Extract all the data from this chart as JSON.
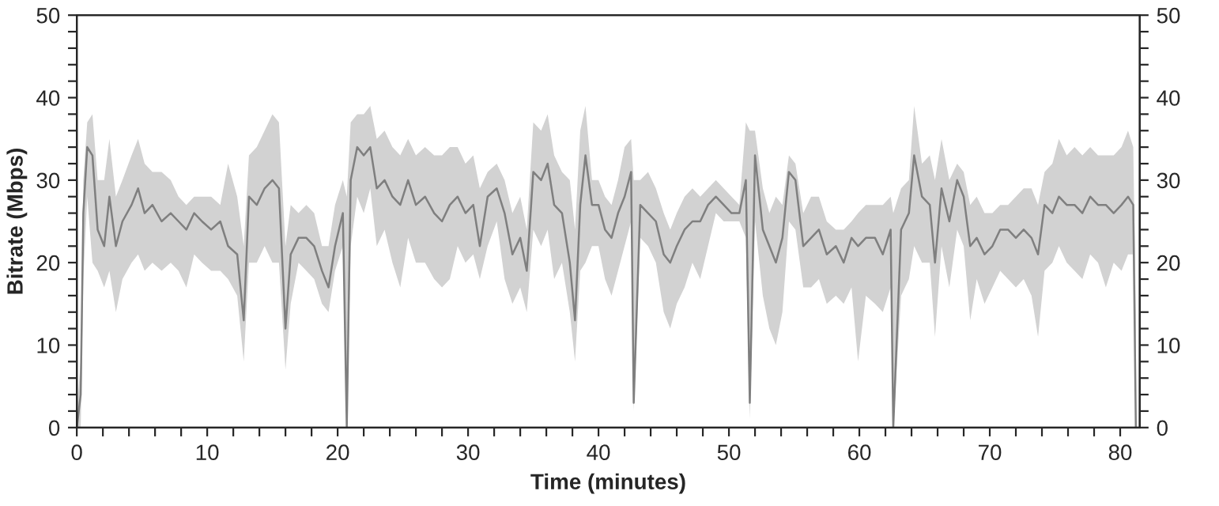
{
  "chart_data": {
    "type": "line",
    "xlabel": "Time (minutes)",
    "ylabel": "Bitrate (Mbps)",
    "x": [
      0,
      0.3,
      0.5,
      0.8,
      1.2,
      1.6,
      2.1,
      2.5,
      3.0,
      3.5,
      4.2,
      4.7,
      5.2,
      5.8,
      6.5,
      7.2,
      7.8,
      8.4,
      9.0,
      9.6,
      10.3,
      11.0,
      11.6,
      12.3,
      12.8,
      13.2,
      13.8,
      14.4,
      15.0,
      15.5,
      16.0,
      16.4,
      17.0,
      17.6,
      18.2,
      18.8,
      19.3,
      19.8,
      20.4,
      20.7,
      21.0,
      21.5,
      22.0,
      22.5,
      23.0,
      23.6,
      24.2,
      24.8,
      25.4,
      26.0,
      26.7,
      27.4,
      28.0,
      28.6,
      29.2,
      29.8,
      30.4,
      30.9,
      31.5,
      32.2,
      32.8,
      33.4,
      34.0,
      34.5,
      35.0,
      35.6,
      36.1,
      36.6,
      37.2,
      37.8,
      38.2,
      38.6,
      39.0,
      39.5,
      40.0,
      40.5,
      41.0,
      41.5,
      42.0,
      42.5,
      42.7,
      43.2,
      43.8,
      44.4,
      45.0,
      45.5,
      46.0,
      46.6,
      47.2,
      47.8,
      48.4,
      49.0,
      49.6,
      50.2,
      50.8,
      51.3,
      51.6,
      52.0,
      52.6,
      53.1,
      53.6,
      54.1,
      54.6,
      55.1,
      55.7,
      56.3,
      56.9,
      57.5,
      58.2,
      58.8,
      59.4,
      59.9,
      60.5,
      61.2,
      61.8,
      62.4,
      62.6,
      63.2,
      63.8,
      64.2,
      64.8,
      65.4,
      65.8,
      66.3,
      66.9,
      67.5,
      68.0,
      68.5,
      69.0,
      69.6,
      70.2,
      70.8,
      71.4,
      72.0,
      72.6,
      73.2,
      73.7,
      74.2,
      74.8,
      75.3,
      75.9,
      76.5,
      77.1,
      77.7,
      78.3,
      78.9,
      79.5,
      80.1,
      80.6,
      81.0,
      81.2
    ],
    "series": [
      {
        "color": "#7f7f7f",
        "values": [
          0,
          4,
          26,
          34,
          33,
          24,
          22,
          28,
          22,
          25,
          27,
          29,
          26,
          27,
          25,
          26,
          25,
          24,
          26,
          25,
          24,
          25,
          22,
          21,
          13,
          28,
          27,
          29,
          30,
          29,
          12,
          21,
          23,
          23,
          22,
          19,
          17,
          22,
          26,
          0,
          30,
          34,
          33,
          34,
          29,
          30,
          28,
          27,
          30,
          27,
          28,
          26,
          25,
          27,
          28,
          26,
          27,
          22,
          28,
          29,
          26,
          21,
          23,
          19,
          31,
          30,
          32,
          27,
          26,
          20,
          13,
          27,
          33,
          27,
          27,
          24,
          23,
          26,
          28,
          31,
          3,
          27,
          26,
          25,
          21,
          20,
          22,
          24,
          25,
          25,
          27,
          28,
          27,
          26,
          26,
          30,
          3,
          33,
          24,
          22,
          20,
          23,
          31,
          30,
          22,
          23,
          24,
          21,
          22,
          20,
          23,
          22,
          23,
          23,
          21,
          24,
          0,
          24,
          26,
          33,
          28,
          27,
          20,
          29,
          25,
          30,
          28,
          22,
          23,
          21,
          22,
          24,
          24,
          23,
          24,
          23,
          21,
          27,
          26,
          28,
          27,
          27,
          26,
          28,
          27,
          27,
          26,
          27,
          28,
          27,
          0
        ],
        "lower": [
          0,
          0,
          18,
          28,
          20,
          19,
          17,
          19,
          14,
          18,
          20,
          21,
          19,
          20,
          19,
          20,
          19,
          17,
          21,
          20,
          19,
          19,
          18,
          16,
          8,
          20,
          20,
          22,
          20,
          20,
          7,
          15,
          20,
          19,
          18,
          15,
          14,
          19,
          22,
          0,
          22,
          28,
          26,
          29,
          22,
          24,
          20,
          17,
          23,
          20,
          20,
          18,
          17,
          18,
          22,
          20,
          21,
          18,
          22,
          25,
          18,
          15,
          17,
          14,
          24,
          22,
          24,
          18,
          20,
          14,
          8,
          19,
          20,
          22,
          22,
          18,
          16,
          19,
          22,
          25,
          2,
          23,
          22,
          20,
          14,
          12,
          15,
          17,
          20,
          18,
          22,
          26,
          25,
          25,
          25,
          23,
          1,
          25,
          16,
          12,
          10,
          14,
          25,
          24,
          17,
          17,
          18,
          15,
          16,
          15,
          17,
          8,
          16,
          15,
          14,
          17,
          0,
          16,
          18,
          22,
          20,
          20,
          11,
          22,
          17,
          24,
          22,
          13,
          18,
          15,
          17,
          19,
          18,
          17,
          18,
          16,
          11,
          19,
          20,
          22,
          20,
          19,
          18,
          21,
          20,
          17,
          20,
          19,
          21,
          21,
          0
        ],
        "upper": [
          2,
          8,
          30,
          37,
          38,
          30,
          30,
          35,
          28,
          30,
          33,
          35,
          32,
          31,
          31,
          30,
          28,
          27,
          28,
          28,
          28,
          27,
          32,
          28,
          22,
          33,
          34,
          36,
          38,
          37,
          22,
          27,
          26,
          27,
          26,
          22,
          22,
          27,
          30,
          28,
          37,
          38,
          38,
          39,
          35,
          36,
          34,
          33,
          35,
          33,
          34,
          33,
          33,
          34,
          34,
          32,
          33,
          29,
          31,
          32,
          30,
          26,
          28,
          24,
          37,
          36,
          38,
          33,
          31,
          30,
          24,
          36,
          39,
          30,
          30,
          28,
          27,
          30,
          34,
          35,
          30,
          30,
          31,
          29,
          26,
          24,
          26,
          28,
          29,
          28,
          29,
          30,
          29,
          28,
          27,
          37,
          36,
          36,
          29,
          26,
          28,
          27,
          33,
          32,
          26,
          28,
          28,
          25,
          24,
          24,
          25,
          26,
          27,
          27,
          27,
          28,
          26,
          29,
          30,
          39,
          32,
          33,
          30,
          35,
          30,
          32,
          31,
          27,
          28,
          26,
          26,
          27,
          27,
          28,
          29,
          29,
          27,
          31,
          32,
          35,
          33,
          34,
          33,
          34,
          33,
          33,
          33,
          34,
          36,
          34,
          14
        ]
      }
    ],
    "xlim": [
      0,
      81.5
    ],
    "xticks": [
      0,
      {
        "value": 2,
        "label": null
      },
      {
        "value": 4,
        "label": null
      },
      {
        "value": 6,
        "label": null
      },
      {
        "value": 8,
        "label": null
      },
      10,
      {
        "value": 12,
        "label": null
      },
      {
        "value": 14,
        "label": null
      },
      {
        "value": 16,
        "label": null
      },
      {
        "value": 18,
        "label": null
      },
      20,
      {
        "value": 22,
        "label": null
      },
      {
        "value": 24,
        "label": null
      },
      {
        "value": 26,
        "label": null
      },
      {
        "value": 28,
        "label": null
      },
      30,
      {
        "value": 32,
        "label": null
      },
      {
        "value": 34,
        "label": null
      },
      {
        "value": 36,
        "label": null
      },
      {
        "value": 38,
        "label": null
      },
      40,
      {
        "value": 42,
        "label": null
      },
      {
        "value": 44,
        "label": null
      },
      {
        "value": 46,
        "label": null
      },
      {
        "value": 48,
        "label": null
      },
      50,
      {
        "value": 52,
        "label": null
      },
      {
        "value": 54,
        "label": null
      },
      {
        "value": 56,
        "label": null
      },
      {
        "value": 58,
        "label": null
      },
      60,
      {
        "value": 62,
        "label": null
      },
      {
        "value": 64,
        "label": null
      },
      {
        "value": 66,
        "label": null
      },
      {
        "value": 68,
        "label": null
      },
      70,
      {
        "value": 72,
        "label": null
      },
      {
        "value": 74,
        "label": null
      },
      {
        "value": 76,
        "label": null
      },
      {
        "value": 78,
        "label": null
      },
      80
    ],
    "ylim": [
      0,
      50
    ],
    "yticks": [
      0,
      {
        "value": 2,
        "label": null
      },
      {
        "value": 4,
        "label": null
      },
      {
        "value": 6,
        "label": null
      },
      {
        "value": 8,
        "label": null
      },
      10,
      {
        "value": 12,
        "label": null
      },
      {
        "value": 14,
        "label": null
      },
      {
        "value": 16,
        "label": null
      },
      {
        "value": 18,
        "label": null
      },
      20,
      {
        "value": 22,
        "label": null
      },
      {
        "value": 24,
        "label": null
      },
      {
        "value": 26,
        "label": null
      },
      {
        "value": 28,
        "label": null
      },
      30,
      {
        "value": 32,
        "label": null
      },
      {
        "value": 34,
        "label": null
      },
      {
        "value": 36,
        "label": null
      },
      {
        "value": 38,
        "label": null
      },
      40,
      {
        "value": 42,
        "label": null
      },
      {
        "value": 44,
        "label": null
      },
      {
        "value": 46,
        "label": null
      },
      {
        "value": 48,
        "label": null
      },
      50
    ],
    "y2lim": [
      0,
      50
    ],
    "y2ticks": [
      0,
      {
        "value": 2,
        "label": null
      },
      {
        "value": 4,
        "label": null
      },
      {
        "value": 6,
        "label": null
      },
      {
        "value": 8,
        "label": null
      },
      10,
      {
        "value": 12,
        "label": null
      },
      {
        "value": 14,
        "label": null
      },
      {
        "value": 16,
        "label": null
      },
      {
        "value": 18,
        "label": null
      },
      20,
      {
        "value": 22,
        "label": null
      },
      {
        "value": 24,
        "label": null
      },
      {
        "value": 26,
        "label": null
      },
      {
        "value": 28,
        "label": null
      },
      30,
      {
        "value": 32,
        "label": null
      },
      {
        "value": 34,
        "label": null
      },
      {
        "value": 36,
        "label": null
      },
      {
        "value": 38,
        "label": null
      },
      40,
      {
        "value": 42,
        "label": null
      },
      {
        "value": 44,
        "label": null
      },
      {
        "value": 46,
        "label": null
      },
      {
        "value": 48,
        "label": null
      },
      50
    ],
    "grid": false,
    "legend": false
  }
}
